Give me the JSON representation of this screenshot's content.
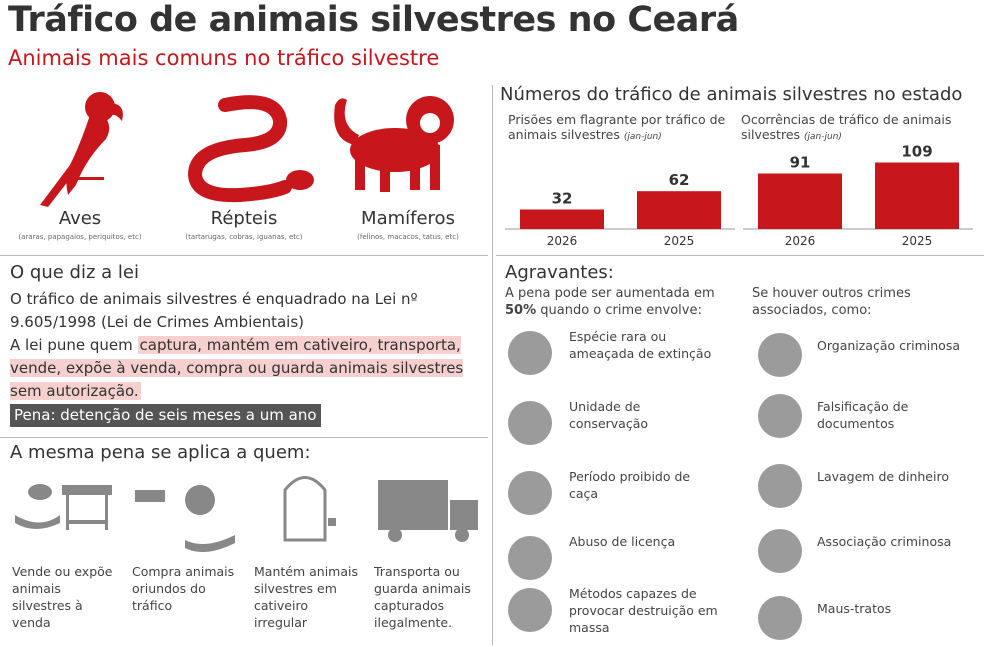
{
  "title": "Tráfico de animais silvestres no Ceará",
  "subtitle": "Animais mais comuns no tráfico silvestre",
  "animals": [
    {
      "label": "Aves",
      "note": "(araras, papagaios, periquitos, etc)"
    },
    {
      "label": "Répteis",
      "note": "(tartarugas, cobras, iguanas, etc)"
    },
    {
      "label": "Mamíferos",
      "note": "(felinos, macacos, tatus, etc)"
    }
  ],
  "chart_heading": "Números do tráfico de animais silvestres no estado",
  "chart_data": [
    {
      "type": "bar",
      "title": "Prisões em flagrante por tráfico de animais silvestres",
      "period": "(jan-jun)",
      "categories": [
        "2026",
        "2025"
      ],
      "values": [
        32,
        62
      ],
      "color": "#c8161d"
    },
    {
      "type": "bar",
      "title": "Ocorrências de tráfico de animais silvestres",
      "period": "(jan-jun)",
      "categories": [
        "2026",
        "2025"
      ],
      "values": [
        91,
        109
      ],
      "color": "#c8161d"
    }
  ],
  "law": {
    "heading": "O que diz a lei",
    "text": "O tráfico de animais silvestres é enquadrado na Lei nº 9.605/1998 (Lei de Crimes Ambientais)",
    "lead": "A lei pune quem",
    "highlight": "captura, mantém em cativeiro, transporta, vende, expõe à venda, compra ou guarda animais silvestres sem autorização.",
    "penalty": "Pena: detenção de seis meses a um ano"
  },
  "same_penalty": {
    "heading": "A mesma pena se aplica a quem:",
    "items": [
      "Vende ou expõe animais silvestres à venda",
      "Compra animais oriundos do tráfico",
      "Mantém animais silvestres em cativeiro irregular",
      "Transporta ou guarda animais capturados ilegalmente."
    ]
  },
  "aggravating": {
    "heading": "Agravantes:",
    "left_intro_a": "A pena pode ser aumentada em",
    "left_intro_bold": "50%",
    "left_intro_b": "quando o crime envolve:",
    "left_items": [
      "Espécie rara ou ameaçada de extinção",
      "Unidade de conservação",
      "Período proibido de caça",
      "Abuso de licença",
      "Métodos capazes de provocar destruição em massa"
    ],
    "right_intro": "Se houver outros crimes associados, como:",
    "right_items": [
      "Organização criminosa",
      "Falsificação de documentos",
      "Lavagem de dinheiro",
      "Associação criminosa",
      "Maus-tratos"
    ]
  }
}
